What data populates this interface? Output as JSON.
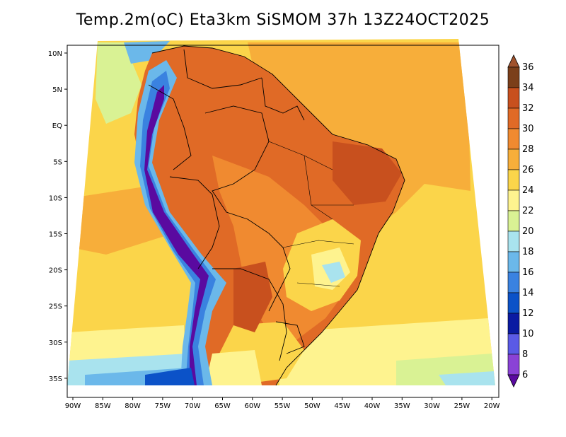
{
  "title": "Temp.2m(oC) Eta3km SiSMOM 37h 13Z24OCT2025",
  "lat_labels": [
    "10N",
    "5N",
    "EQ",
    "5S",
    "10S",
    "15S",
    "20S",
    "25S",
    "30S",
    "35S"
  ],
  "lon_labels": [
    "90W",
    "85W",
    "80W",
    "75W",
    "70W",
    "65W",
    "60W",
    "55W",
    "50W",
    "45W",
    "40W",
    "35W",
    "30W",
    "25W",
    "20W"
  ],
  "colorbar": {
    "unit": "oC",
    "labels": [
      "36",
      "34",
      "32",
      "30",
      "28",
      "26",
      "24",
      "22",
      "20",
      "18",
      "16",
      "14",
      "12",
      "10",
      "8",
      "6"
    ],
    "colors": [
      "#a0522d",
      "#7b3f1a",
      "#c8501e",
      "#e06a26",
      "#f08a30",
      "#f7ae3a",
      "#fbd54a",
      "#fef38f",
      "#d9f294",
      "#a9e3ee",
      "#6bb8ea",
      "#3a82e0",
      "#0b52c8",
      "#0a1aa2",
      "#5a5ae6",
      "#8a42d6",
      "#5a0aa0"
    ]
  },
  "colors": {
    "ocean_warm": "#fbd54a",
    "ocean_mid": "#f7ae3a",
    "ocean_cool": "#fef38f",
    "land_hot": "#e06a26",
    "land_warm": "#f08a30",
    "andes": "#5a0aa0"
  }
}
